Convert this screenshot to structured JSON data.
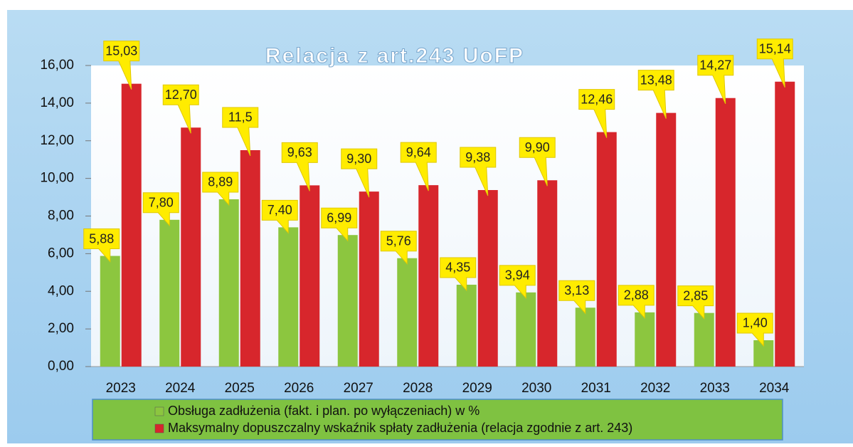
{
  "chart_data": {
    "type": "bar",
    "title": "Relacja z art.243 UoFP",
    "categories": [
      "2023",
      "2024",
      "2025",
      "2026",
      "2027",
      "2028",
      "2029",
      "2030",
      "2031",
      "2032",
      "2033",
      "2034"
    ],
    "series": [
      {
        "name": "Obsługa zadłużenia (fakt. i plan. po wyłączeniach) w %",
        "color": "#8cc63f",
        "values": [
          5.88,
          7.8,
          8.89,
          7.4,
          6.99,
          5.76,
          4.35,
          3.94,
          3.13,
          2.88,
          2.85,
          1.4
        ],
        "value_labels": [
          "5,88",
          "7,80",
          "8,89",
          "7,40",
          "6,99",
          "5,76",
          "4,35",
          "3,94",
          "3,13",
          "2,88",
          "2,85",
          "1,40"
        ]
      },
      {
        "name": "Maksymalny dopuszczalny wskaźnik spłaty  zadłużenia (relacja zgodnie z art. 243)",
        "color": "#d7262c",
        "values": [
          15.03,
          12.7,
          11.5,
          9.63,
          9.3,
          9.64,
          9.38,
          9.9,
          12.46,
          13.48,
          14.27,
          15.14
        ],
        "value_labels": [
          "15,03",
          "12,70",
          "11,5",
          "9,63",
          "9,30",
          "9,64",
          "9,38",
          "9,90",
          "12,46",
          "13,48",
          "14,27",
          "15,14"
        ]
      }
    ],
    "ylim": [
      0,
      16
    ],
    "yticks": [
      {
        "value": 0,
        "label": "0,00"
      },
      {
        "value": 2,
        "label": "2,00"
      },
      {
        "value": 4,
        "label": "4,00"
      },
      {
        "value": 6,
        "label": "6,00"
      },
      {
        "value": 8,
        "label": "8,00"
      },
      {
        "value": 10,
        "label": "10,00"
      },
      {
        "value": 12,
        "label": "12,00"
      },
      {
        "value": 14,
        "label": "14,00"
      },
      {
        "value": 16,
        "label": "16,00"
      }
    ],
    "legend": "bottom"
  }
}
